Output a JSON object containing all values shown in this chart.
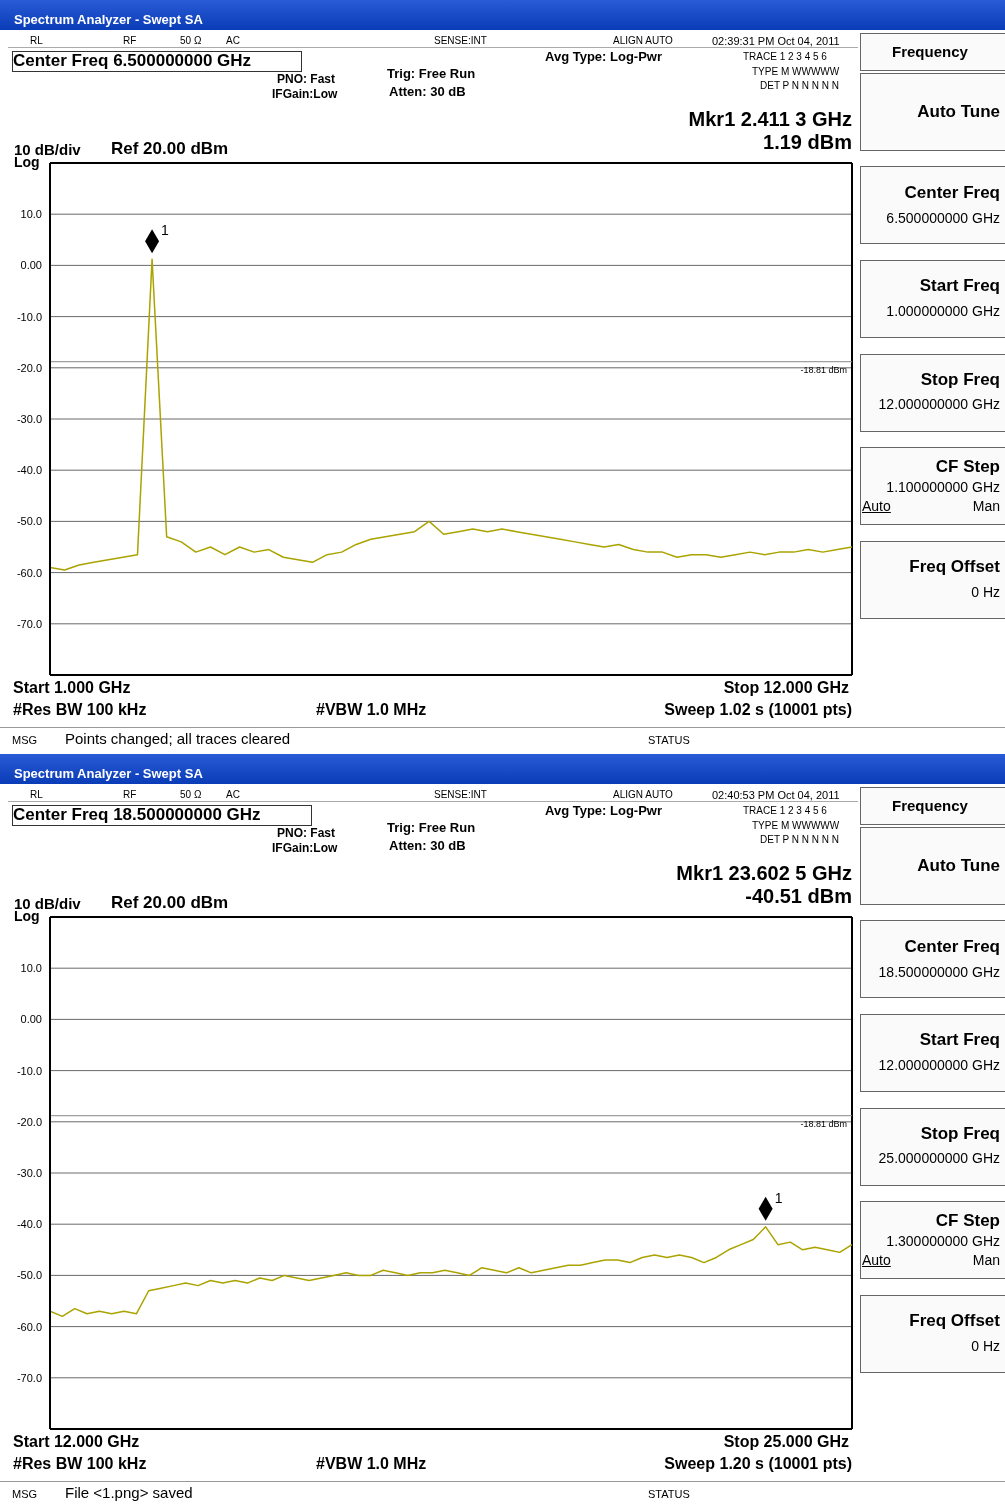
{
  "chart_data": [
    {
      "type": "line",
      "title": "Spectrum Analyzer - Swept SA",
      "color": "#aaa300",
      "marker": "none",
      "grid": true,
      "tick_labels": "y",
      "categories": [
        null,
        null,
        null,
        null,
        null,
        null,
        null,
        null,
        null,
        null,
        null,
        null,
        null,
        null,
        null,
        null,
        null,
        null,
        null,
        null,
        null,
        null,
        null,
        null,
        null,
        null,
        null,
        null,
        null,
        null,
        null,
        null,
        null,
        null,
        null,
        null,
        null,
        null,
        null,
        null,
        null,
        null,
        null,
        null,
        null,
        null,
        null,
        null,
        null,
        null,
        null,
        null,
        null,
        null,
        null,
        null
      ],
      "ylim": [
        -80,
        20
      ],
      "yticks": [
        {
          "value": 20,
          "label": null
        },
        {
          "value": 10,
          "label": "10.0"
        },
        {
          "value": 0,
          "label": "0.00"
        },
        {
          "value": -10,
          "label": "-10.0"
        },
        {
          "value": -20,
          "label": "-20.0"
        },
        {
          "value": -30,
          "label": "-30.0"
        },
        {
          "value": -40,
          "label": "-40.0"
        },
        {
          "value": -50,
          "label": "-50.0"
        },
        {
          "value": -60,
          "label": "-60.0"
        },
        {
          "value": -70,
          "label": "-70.0"
        },
        {
          "value": -80,
          "label": null
        }
      ],
      "ref_lines": [
        {
          "axis": "y",
          "value": -18.81,
          "label": "-18.81 dBm",
          "color": "#888888"
        }
      ],
      "values": [
        -59,
        -59.5,
        -58.5,
        -58,
        -57.5,
        -57,
        -56.5,
        1.19,
        -53,
        -54,
        -56,
        -55,
        -56.5,
        -55,
        -56,
        -55.5,
        -57,
        -57.5,
        -58,
        -56.5,
        -56,
        -54.5,
        -53.5,
        -53,
        -52.5,
        -52,
        -50,
        -52.5,
        -52,
        -51.5,
        -52,
        -51.5,
        -52,
        -52.5,
        -53,
        -53.5,
        -54,
        -54.5,
        -55,
        -54.5,
        -55.5,
        -56,
        -56,
        -57,
        -56.5,
        -56.5,
        -57,
        -56.5,
        -56,
        -56.5,
        -56,
        -56,
        -55.5,
        -56,
        -55.5,
        -55
      ],
      "annotations": [
        "RL",
        "RF",
        "50 Ω",
        "AC",
        "SENSE:INT",
        "ALIGN AUTO",
        "02:39:31 PM Oct 04, 2011",
        "Center Freq  6.500000000 GHz",
        "PNO: Fast",
        "IFGain:Low",
        "Trig: Free Run",
        "Atten: 30 dB",
        "Avg Type: Log-Pwr",
        "TRACE 1 2 3 4 5 6",
        "TYPE M WWWWW",
        "DET P N N N N N",
        "Mkr1 2.411 3 GHz",
        "1.19 dBm",
        "10 dB/div",
        "Ref 20.00 dBm",
        "Log",
        "Start 1.000 GHz",
        "Stop 12.000 GHz",
        "#Res BW 100 kHz",
        "#VBW 1.0 MHz",
        "Sweep  1.02 s (10001 pts)",
        "MSG",
        "Points changed; all traces cleared",
        "STATUS",
        "Frequency",
        "Auto Tune",
        "Center Freq",
        "6.500000000 GHz",
        "Start Freq",
        "1.000000000 GHz",
        "Stop Freq",
        "12.000000000 GHz",
        "CF Step",
        "1.100000000 GHz",
        "Auto",
        "Man",
        "Freq Offset",
        "0 Hz",
        "1"
      ]
    },
    {
      "type": "line",
      "title": "Spectrum Analyzer - Swept SA",
      "color": "#aaa300",
      "marker": "none",
      "grid": true,
      "tick_labels": "y",
      "categories": [
        null,
        null,
        null,
        null,
        null,
        null,
        null,
        null,
        null,
        null,
        null,
        null,
        null,
        null,
        null,
        null,
        null,
        null,
        null,
        null,
        null,
        null,
        null,
        null,
        null,
        null,
        null,
        null,
        null,
        null,
        null,
        null,
        null,
        null,
        null,
        null,
        null,
        null,
        null,
        null,
        null,
        null,
        null,
        null,
        null,
        null,
        null,
        null,
        null,
        null,
        null,
        null,
        null,
        null,
        null,
        null,
        null,
        null,
        null,
        null,
        null,
        null,
        null,
        null,
        null,
        null
      ],
      "ylim": [
        -80,
        20
      ],
      "yticks": [
        {
          "value": 20,
          "label": null
        },
        {
          "value": 10,
          "label": "10.0"
        },
        {
          "value": 0,
          "label": "0.00"
        },
        {
          "value": -10,
          "label": "-10.0"
        },
        {
          "value": -20,
          "label": "-20.0"
        },
        {
          "value": -30,
          "label": "-30.0"
        },
        {
          "value": -40,
          "label": "-40.0"
        },
        {
          "value": -50,
          "label": "-50.0"
        },
        {
          "value": -60,
          "label": "-60.0"
        },
        {
          "value": -70,
          "label": "-70.0"
        },
        {
          "value": -80,
          "label": null
        }
      ],
      "ref_lines": [
        {
          "axis": "y",
          "value": -18.81,
          "label": "-18.81 dBm",
          "color": "#888888"
        }
      ],
      "values": [
        -57,
        -58,
        -56.5,
        -57.5,
        -57,
        -57.5,
        -57,
        -57.5,
        -53,
        -52.5,
        -52,
        -51.5,
        -52,
        -51,
        -51.5,
        -51,
        -51.5,
        -50.5,
        -51,
        -50,
        -50.5,
        -51,
        -50.5,
        -50,
        -49.5,
        -50,
        -50,
        -49,
        -49.5,
        -50,
        -49.5,
        -49.5,
        -49,
        -49.5,
        -50,
        -48.5,
        -49,
        -49.5,
        -48.5,
        -49.5,
        -49,
        -48.5,
        -48,
        -48,
        -47.5,
        -47,
        -47,
        -47.5,
        -46.5,
        -46,
        -46.5,
        -46,
        -46.5,
        -47.5,
        -46.5,
        -45,
        -44,
        -43,
        -40.51,
        -44,
        -43.5,
        -45,
        -44.5,
        -45,
        -45.5,
        -44
      ],
      "annotations": [
        "RL",
        "RF",
        "50 Ω",
        "AC",
        "SENSE:INT",
        "ALIGN AUTO",
        "02:40:53 PM Oct 04, 2011",
        "Center Freq  18.500000000 GHz",
        "PNO: Fast",
        "IFGain:Low",
        "Trig: Free Run",
        "Atten: 30 dB",
        "Avg Type: Log-Pwr",
        "TRACE 1 2 3 4 5 6",
        "TYPE M WWWWW",
        "DET P N N N N N",
        "Mkr1 23.602 5 GHz",
        "-40.51 dBm",
        "10 dB/div",
        "Ref 20.00 dBm",
        "Log",
        "Start 12.000 GHz",
        "Stop 25.000 GHz",
        "#Res BW 100 kHz",
        "#VBW 1.0 MHz",
        "Sweep  1.20 s (10001 pts)",
        "MSG",
        "File <1.png> saved",
        "STATUS",
        "Frequency",
        "Auto Tune",
        "Center Freq",
        "18.500000000 GHz",
        "Start Freq",
        "12.000000000 GHz",
        "Stop Freq",
        "25.000000000 GHz",
        "CF Step",
        "1.300000000 GHz",
        "Auto",
        "Man",
        "Freq Offset",
        "0 Hz",
        "1"
      ]
    }
  ]
}
